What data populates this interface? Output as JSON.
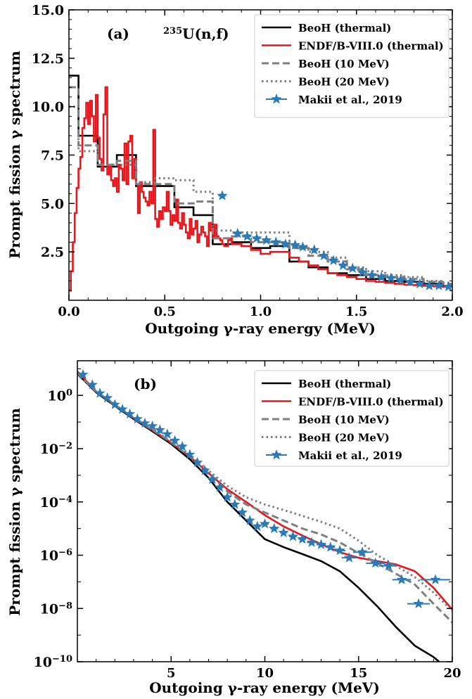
{
  "chart_data": [
    {
      "panel_label": "(a)",
      "annotation": {
        "sup": "235",
        "text": "U(n,f)"
      },
      "type": "line",
      "title": "",
      "xlabel": "Outgoing γ-ray energy (MeV)",
      "ylabel": "Prompt fission γ spectrum",
      "xlim": [
        0,
        2.0
      ],
      "ylim": [
        0,
        15.0
      ],
      "xticks": [
        0,
        0.5,
        1.0,
        1.5,
        2.0
      ],
      "xticklabels": [
        "0.0",
        "0.5",
        "1.0",
        "1.5",
        "2.0"
      ],
      "yticks": [
        2.5,
        5.0,
        7.5,
        10.0,
        12.5,
        15.0
      ],
      "yticklabels": [
        "2.5",
        "5.0",
        "7.5",
        "10.0",
        "12.5",
        "15.0"
      ],
      "grid": false,
      "legend_position": "top-right",
      "series": [
        {
          "name": "BeoH (thermal)",
          "color": "#000000",
          "dash": "solid",
          "width": 2.6,
          "step": true,
          "edges": [
            0,
            0.05,
            0.15,
            0.25,
            0.35,
            0.45,
            0.55,
            0.65,
            0.75,
            0.85,
            0.95,
            1.05,
            1.15,
            1.25,
            1.35,
            1.45,
            1.55,
            1.65,
            1.75,
            1.85,
            1.95,
            2.0
          ],
          "values": [
            11.6,
            8.5,
            6.9,
            7.5,
            5.9,
            5.9,
            4.8,
            4.4,
            2.9,
            3.0,
            2.7,
            2.8,
            2.0,
            1.7,
            1.4,
            1.3,
            1.1,
            1.0,
            0.95,
            0.85,
            0.75
          ]
        },
        {
          "name": "ENDF/B-VIII.0 (thermal)",
          "color": "#e8161c",
          "dash": "solid",
          "width": 2.6,
          "step": true,
          "edges": [
            0.0,
            0.01,
            0.02,
            0.03,
            0.04,
            0.05,
            0.06,
            0.07,
            0.08,
            0.09,
            0.1,
            0.11,
            0.12,
            0.13,
            0.14,
            0.15,
            0.16,
            0.17,
            0.18,
            0.19,
            0.2,
            0.21,
            0.22,
            0.23,
            0.24,
            0.25,
            0.26,
            0.27,
            0.28,
            0.29,
            0.3,
            0.31,
            0.32,
            0.33,
            0.34,
            0.35,
            0.36,
            0.37,
            0.38,
            0.39,
            0.4,
            0.41,
            0.42,
            0.43,
            0.44,
            0.45,
            0.46,
            0.47,
            0.48,
            0.49,
            0.5,
            0.51,
            0.52,
            0.53,
            0.54,
            0.55,
            0.56,
            0.57,
            0.58,
            0.59,
            0.6,
            0.61,
            0.62,
            0.63,
            0.64,
            0.65,
            0.66,
            0.67,
            0.68,
            0.69,
            0.7,
            0.71,
            0.72,
            0.73,
            0.74,
            0.75,
            0.76,
            0.77,
            0.78,
            0.79,
            0.8,
            0.81,
            0.82,
            0.83,
            0.84,
            0.85,
            0.9,
            0.95,
            1.0,
            1.05,
            1.1,
            1.15,
            1.2,
            1.25,
            1.3,
            1.35,
            1.4,
            1.45,
            1.5,
            1.55,
            1.6,
            1.65,
            1.7,
            1.75,
            1.8,
            1.85,
            1.9,
            1.95,
            2.0
          ],
          "values": [
            0.5,
            1.5,
            3.0,
            4.5,
            5.8,
            6.8,
            7.4,
            8.9,
            9.4,
            10.2,
            9.1,
            10.3,
            9.5,
            8.2,
            10.6,
            8.4,
            7.3,
            6.7,
            9.6,
            11.0,
            6.5,
            7.0,
            6.2,
            5.9,
            6.3,
            5.6,
            7.0,
            6.8,
            6.2,
            8.1,
            6.0,
            8.2,
            8.5,
            6.3,
            7.3,
            6.0,
            4.5,
            6.1,
            5.6,
            5.3,
            5.1,
            4.9,
            5.6,
            5.0,
            8.8,
            4.2,
            3.8,
            4.6,
            4.2,
            4.8,
            4.6,
            5.6,
            4.6,
            3.9,
            4.4,
            4.1,
            5.2,
            4.0,
            3.7,
            4.5,
            3.9,
            3.5,
            3.2,
            4.2,
            3.4,
            3.7,
            4.1,
            3.0,
            3.4,
            3.8,
            3.5,
            3.3,
            2.8,
            4.0,
            3.6,
            3.3,
            3.9,
            3.3,
            3.2,
            3.1,
            2.9,
            2.8,
            2.8,
            3.1,
            3.2,
            2.9,
            2.8,
            2.6,
            2.4,
            2.5,
            2.5,
            2.2,
            2.0,
            1.8,
            1.6,
            1.4,
            1.3,
            1.2,
            1.1,
            1.0,
            0.95,
            0.9,
            0.85,
            0.8,
            0.78,
            0.75,
            0.72,
            0.7
          ]
        },
        {
          "name": "BeoH (10 MeV)",
          "color": "#7f7f7f",
          "dash": "10,5",
          "width": 3,
          "step": true,
          "edges": [
            0,
            0.05,
            0.15,
            0.25,
            0.35,
            0.45,
            0.55,
            0.65,
            0.75,
            0.85,
            0.95,
            1.05,
            1.15,
            1.25,
            1.35,
            1.45,
            1.55,
            1.65,
            1.75,
            1.85,
            1.95,
            2.0
          ],
          "values": [
            11.0,
            8.0,
            7.0,
            7.2,
            6.0,
            6.0,
            5.0,
            5.1,
            3.2,
            3.3,
            3.0,
            3.0,
            2.7,
            2.3,
            2.0,
            1.6,
            1.3,
            1.2,
            1.1,
            0.95,
            0.85
          ]
        },
        {
          "name": "BeoH (20 MeV)",
          "color": "#7f7f7f",
          "dash": "2.5,4",
          "width": 3,
          "step": true,
          "edges": [
            0,
            0.05,
            0.15,
            0.25,
            0.35,
            0.45,
            0.55,
            0.65,
            0.75,
            0.85,
            0.95,
            1.05,
            1.15,
            1.25,
            1.35,
            1.45,
            1.55,
            1.65,
            1.75,
            1.85,
            1.95,
            2.0
          ],
          "values": [
            10.0,
            7.7,
            7.0,
            7.0,
            6.1,
            6.3,
            6.2,
            5.6,
            3.6,
            3.5,
            3.5,
            3.5,
            2.8,
            2.5,
            2.2,
            1.7,
            1.5,
            1.3,
            1.2,
            1.0,
            0.9
          ]
        },
        {
          "name": "Makii et al., 2019",
          "color": "#2a7ab8",
          "marker": "star",
          "x": [
            0.8,
            0.88,
            0.93,
            0.98,
            1.03,
            1.08,
            1.13,
            1.18,
            1.22,
            1.28,
            1.33,
            1.38,
            1.43,
            1.48,
            1.53,
            1.58,
            1.63,
            1.68,
            1.73,
            1.78,
            1.83,
            1.88,
            1.93,
            1.98
          ],
          "y": [
            5.4,
            3.45,
            3.3,
            3.2,
            3.1,
            3.0,
            2.9,
            2.85,
            2.75,
            2.6,
            2.3,
            2.05,
            1.8,
            1.65,
            1.45,
            1.3,
            1.2,
            1.15,
            1.05,
            0.95,
            0.85,
            0.75,
            0.75,
            0.7
          ],
          "xerr": [
            0.02,
            0.02,
            0.02,
            0.02,
            0.02,
            0.02,
            0.02,
            0.02,
            0.02,
            0.02,
            0.02,
            0.02,
            0.02,
            0.02,
            0.02,
            0.02,
            0.02,
            0.02,
            0.02,
            0.02,
            0.02,
            0.02,
            0.02,
            0.02
          ]
        }
      ]
    },
    {
      "panel_label": "(b)",
      "type": "line",
      "title": "",
      "xlabel": "Outgoing γ-ray energy (MeV)",
      "ylabel": "Prompt fission γ spectrum",
      "xlim": [
        0,
        20
      ],
      "ylim": [
        1e-10,
        20
      ],
      "yscale": "log",
      "xticks": [
        5,
        10,
        15,
        20
      ],
      "xticklabels": [
        "5",
        "10",
        "15",
        "20"
      ],
      "yticks": [
        1e-10,
        1e-08,
        1e-06,
        0.0001,
        0.01,
        1
      ],
      "yticklabels": [
        {
          "base": "10",
          "exp": "−10"
        },
        {
          "base": "10",
          "exp": "−8"
        },
        {
          "base": "10",
          "exp": "−6"
        },
        {
          "base": "10",
          "exp": "−4"
        },
        {
          "base": "10",
          "exp": "−2"
        },
        {
          "base": "10",
          "exp": "0"
        }
      ],
      "grid": false,
      "legend_position": "top-right",
      "series": [
        {
          "name": "BeoH (thermal)",
          "color": "#000000",
          "dash": "solid",
          "width": 2.6,
          "x": [
            0,
            1,
            2,
            3,
            4,
            5,
            6,
            7,
            8,
            9,
            10,
            11,
            12,
            13,
            14,
            15,
            16,
            17,
            18,
            19,
            19.3
          ],
          "y": [
            6.5,
            1.3,
            0.4,
            0.13,
            0.045,
            0.015,
            0.004,
            0.0008,
            0.0001,
            2e-05,
            4e-06,
            2e-06,
            1.1e-06,
            6e-07,
            2.5e-07,
            6e-08,
            1.2e-08,
            2e-09,
            4e-10,
            1.5e-10,
            1e-10
          ]
        },
        {
          "name": "ENDF/B-VIII.0 (thermal)",
          "color": "#e8161c",
          "dash": "solid",
          "width": 2.6,
          "x": [
            0,
            1,
            2,
            3,
            4,
            5,
            6,
            7,
            8,
            9,
            10,
            11,
            12,
            13,
            14,
            15,
            16,
            17,
            18,
            19,
            20
          ],
          "y": [
            8.0,
            1.4,
            0.45,
            0.14,
            0.05,
            0.017,
            0.005,
            0.0012,
            0.0003,
            0.0001,
            3.2e-05,
            1.2e-05,
            5.5e-06,
            2.6e-06,
            1.3e-06,
            8e-07,
            6e-07,
            4.5e-07,
            2.5e-07,
            6e-08,
            9e-09
          ]
        },
        {
          "name": "BeoH (10 MeV)",
          "color": "#7f7f7f",
          "dash": "10,5",
          "width": 3,
          "x": [
            0,
            1,
            2,
            3,
            4,
            5,
            6,
            7,
            8,
            9,
            10,
            11,
            12,
            13,
            14,
            15,
            16,
            17,
            18,
            19,
            20
          ],
          "y": [
            7.0,
            1.4,
            0.45,
            0.14,
            0.05,
            0.017,
            0.005,
            0.0012,
            0.00025,
            8e-05,
            4e-05,
            2e-05,
            1e-05,
            6e-06,
            3e-06,
            1.2e-06,
            5e-07,
            2e-07,
            8e-08,
            1.5e-08,
            3e-09
          ]
        },
        {
          "name": "BeoH (20 MeV)",
          "color": "#7f7f7f",
          "dash": "2.5,4",
          "width": 3,
          "x": [
            0,
            1,
            2,
            3,
            4,
            5,
            6,
            7,
            8,
            9,
            10,
            11,
            12,
            13,
            14,
            15,
            16,
            17,
            18,
            19,
            20
          ],
          "y": [
            6.5,
            1.4,
            0.45,
            0.15,
            0.055,
            0.019,
            0.006,
            0.0015,
            0.0004,
            0.00015,
            8e-05,
            5e-05,
            3e-05,
            1.8e-05,
            1e-05,
            3.5e-06,
            1e-06,
            4e-07,
            1.5e-07,
            4e-08,
            8e-09
          ]
        },
        {
          "name": "Makii et al., 2019",
          "color": "#2a7ab8",
          "marker": "star",
          "x": [
            0.3,
            0.8,
            1.2,
            1.6,
            2.0,
            2.4,
            2.8,
            3.2,
            3.6,
            4.0,
            4.4,
            4.8,
            5.2,
            5.6,
            6.0,
            6.4,
            6.8,
            7.2,
            7.6,
            8.0,
            8.4,
            8.8,
            9.2,
            9.6,
            10.0,
            10.5,
            11.0,
            11.5,
            12.0,
            12.5,
            13.0,
            13.5,
            14.0,
            14.5,
            15.2,
            15.9,
            16.6,
            17.3,
            18.2,
            19.1
          ],
          "y": [
            6.0,
            2.5,
            1.2,
            0.8,
            0.45,
            0.3,
            0.2,
            0.13,
            0.09,
            0.07,
            0.05,
            0.035,
            0.02,
            0.012,
            0.006,
            0.003,
            0.0015,
            0.0007,
            0.00035,
            0.00015,
            8e-05,
            4e-05,
            2e-05,
            1.2e-05,
            1.5e-05,
            1e-05,
            7e-06,
            5e-06,
            4e-06,
            3e-06,
            2.5e-06,
            2e-06,
            1.5e-06,
            8e-07,
            1.3e-06,
            5e-07,
            4e-07,
            1.2e-07,
            1.5e-08,
            1.2e-07
          ],
          "xerr": [
            0.1,
            0.1,
            0.1,
            0.1,
            0.1,
            0.1,
            0.1,
            0.1,
            0.1,
            0.1,
            0.1,
            0.1,
            0.1,
            0.1,
            0.1,
            0.1,
            0.1,
            0.1,
            0.1,
            0.1,
            0.1,
            0.1,
            0.1,
            0.1,
            0.2,
            0.2,
            0.2,
            0.2,
            0.2,
            0.25,
            0.25,
            0.25,
            0.3,
            0.4,
            0.5,
            0.5,
            0.5,
            0.5,
            0.6,
            0.8
          ]
        }
      ]
    }
  ]
}
